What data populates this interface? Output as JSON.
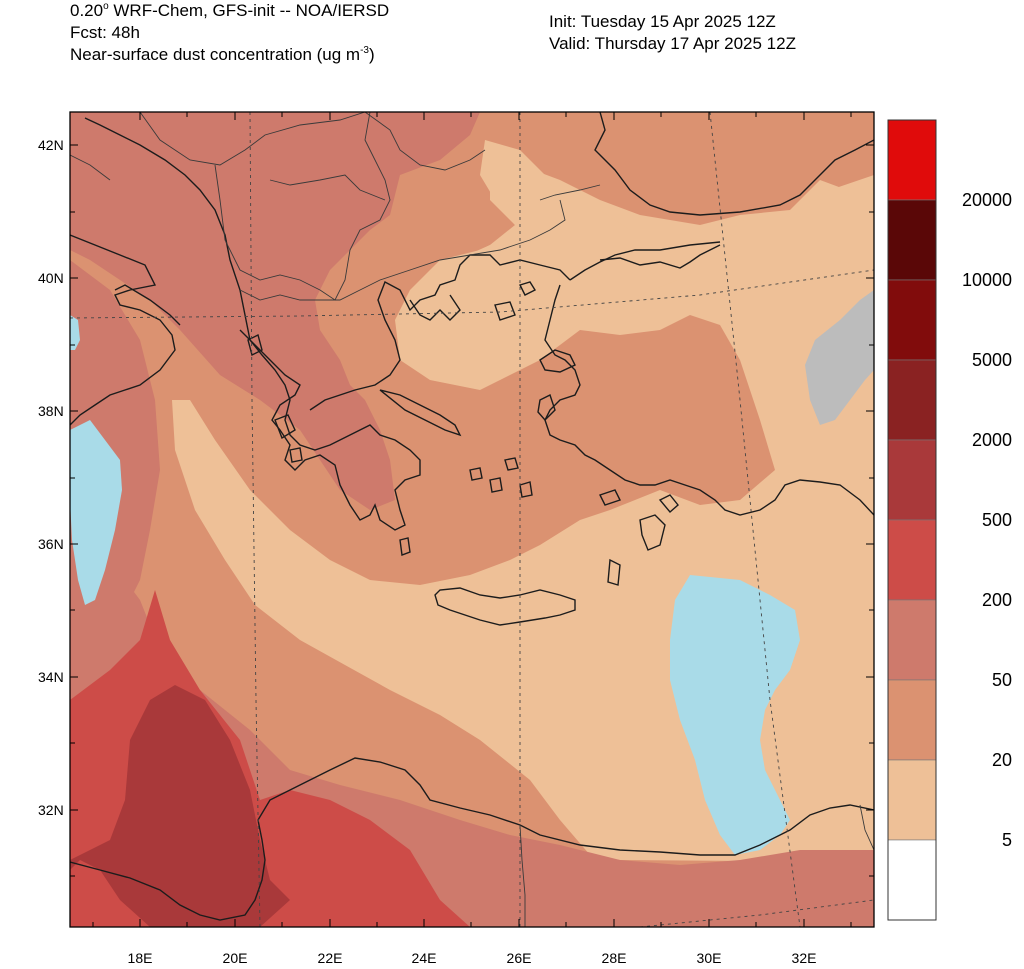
{
  "header": {
    "line1": "0.20",
    "line1_deg": "o",
    "line1_rest": " WRF-Chem, GFS-init -- NOA/IERSD",
    "line2": "Fcst: 48h",
    "line3": "Near-surface dust concentration (ug m",
    "line3_exp": "-3",
    "line3_close": ")",
    "init": "Init: Tuesday 15 Apr 2025  12Z",
    "valid": "Valid: Thursday 17 Apr 2025  12Z"
  },
  "map": {
    "lat_labels": [
      "42N",
      "40N",
      "38N",
      "36N",
      "34N",
      "32N"
    ],
    "lon_labels": [
      "18E",
      "20E",
      "22E",
      "24E",
      "26E",
      "28E",
      "30E",
      "32E"
    ]
  },
  "colorbar": {
    "labels": [
      "20000",
      "10000",
      "5000",
      "2000",
      "500",
      "200",
      "50",
      "20",
      "5"
    ],
    "colors": [
      "#e00b0b",
      "#5a0707",
      "#810c0c",
      "#8a2222",
      "#a9393a",
      "#cd4c48",
      "#ce7a6c",
      "#db9271",
      "#eec097",
      "#ffffff"
    ]
  },
  "palette": {
    "lvl5": "#eec097",
    "lvl20": "#db9271",
    "lvl50": "#ce7a6c",
    "lvl200": "#cd4c48",
    "lvl500": "#a9393a",
    "grey": "#bcbcbc",
    "light_blue": "#a9dbe8",
    "border": "#1c1c1c"
  }
}
